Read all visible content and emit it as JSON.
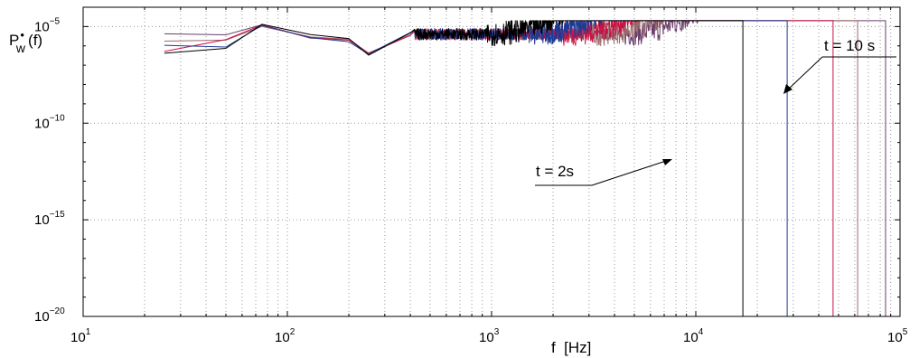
{
  "chart_data": {
    "type": "line",
    "title": "",
    "xlabel": "f  [Hz]",
    "ylabel": "P(f)",
    "ylabel_subscript": "w",
    "ylabel_dot": "•",
    "xscale": "log",
    "yscale": "log",
    "xlim": [
      10,
      100000
    ],
    "ylim": [
      1e-20,
      0.0001
    ],
    "grid": true,
    "x_ticks": [
      {
        "base": "10",
        "exp": "1"
      },
      {
        "base": "10",
        "exp": "2"
      },
      {
        "base": "10",
        "exp": "3"
      },
      {
        "base": "10",
        "exp": "4"
      },
      {
        "base": "10",
        "exp": "5"
      }
    ],
    "y_ticks": [
      {
        "base": "10",
        "exp": "−5"
      },
      {
        "base": "10",
        "exp": "−10"
      },
      {
        "base": "10",
        "exp": "−15"
      },
      {
        "base": "10",
        "exp": "−20"
      }
    ],
    "series": [
      {
        "color": "#000000",
        "rolloff_hz": 950,
        "end_hz": 17000,
        "low_start": 3.5e-07
      },
      {
        "color": "#1f3a93",
        "rolloff_hz": 1500,
        "end_hz": 28000,
        "low_start": 1.4e-06
      },
      {
        "color": "#cc1144",
        "rolloff_hz": 2200,
        "end_hz": 47000,
        "low_start": 6e-07
      },
      {
        "color": "#9a6a6a",
        "rolloff_hz": 3000,
        "end_hz": 62000,
        "low_start": 2.5e-06
      },
      {
        "color": "#6b3d6b",
        "rolloff_hz": 4200,
        "end_hz": 85000,
        "low_start": 6e-06
      }
    ],
    "annotations": [
      {
        "text": "t = 2s",
        "points_to_hz": 7800,
        "points_to_value": 1e-12
      },
      {
        "text": "t = 10 s",
        "points_to_hz": 24000,
        "points_to_value": 5e-09
      }
    ]
  }
}
